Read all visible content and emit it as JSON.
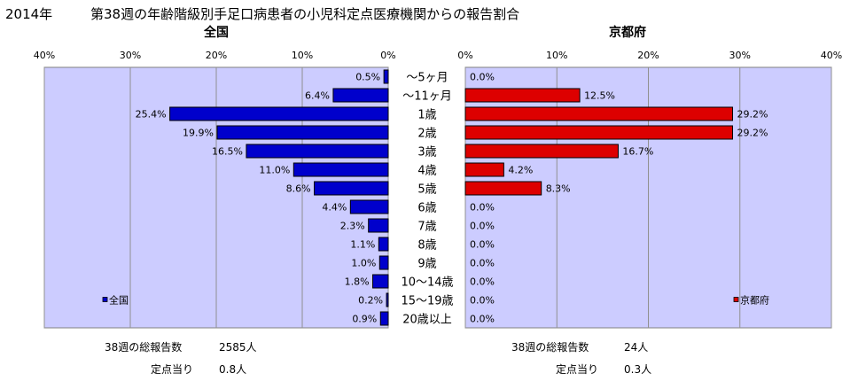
{
  "header": {
    "year": "2014年",
    "title": "第38週の年齢階級別手足口病患者の小児科定点医療機関からの報告割合"
  },
  "chart_data": [
    {
      "type": "bar",
      "orientation": "horizontal",
      "title": "全国",
      "legend": "全国",
      "legend_position": "bottom-left",
      "xlim": [
        0,
        40
      ],
      "x_direction": "reversed",
      "ticks": [
        "0%",
        "10%",
        "20%",
        "30%",
        "40%"
      ],
      "grid": true,
      "color": "#0000cc",
      "categories": [
        "～5ヶ月",
        "～11ヶ月",
        "1歳",
        "2歳",
        "3歳",
        "4歳",
        "5歳",
        "6歳",
        "7歳",
        "8歳",
        "9歳",
        "10～14歳",
        "15～19歳",
        "20歳以上"
      ],
      "values": [
        0.5,
        6.4,
        25.4,
        19.9,
        16.5,
        11.0,
        8.6,
        4.4,
        2.3,
        1.1,
        1.0,
        1.8,
        0.2,
        0.9
      ],
      "value_labels": [
        "0.5%",
        "6.4%",
        "25.4%",
        "19.9%",
        "16.5%",
        "11.0%",
        "8.6%",
        "4.4%",
        "2.3%",
        "1.1%",
        "1.0%",
        "1.8%",
        "0.2%",
        "0.9%"
      ]
    },
    {
      "type": "bar",
      "orientation": "horizontal",
      "title": "京都府",
      "legend": "京都府",
      "legend_position": "bottom-right",
      "xlim": [
        0,
        40
      ],
      "ticks": [
        "0%",
        "10%",
        "20%",
        "30%",
        "40%"
      ],
      "grid": true,
      "color": "#dd0000",
      "categories": [
        "～5ヶ月",
        "～11ヶ月",
        "1歳",
        "2歳",
        "3歳",
        "4歳",
        "5歳",
        "6歳",
        "7歳",
        "8歳",
        "9歳",
        "10～14歳",
        "15～19歳",
        "20歳以上"
      ],
      "values": [
        0.0,
        12.5,
        29.2,
        29.2,
        16.7,
        4.2,
        8.3,
        0.0,
        0.0,
        0.0,
        0.0,
        0.0,
        0.0,
        0.0
      ],
      "value_labels": [
        "0.0%",
        "12.5%",
        "29.2%",
        "29.2%",
        "16.7%",
        "4.2%",
        "8.3%",
        "0.0%",
        "0.0%",
        "0.0%",
        "0.0%",
        "0.0%",
        "0.0%",
        "0.0%"
      ]
    }
  ],
  "footer": {
    "national": {
      "total_label": "38週の総報告数",
      "total_value": "2585人",
      "per_label": "定点当り",
      "per_value": "0.8人"
    },
    "kyoto": {
      "total_label": "38週の総報告数",
      "total_value": "24人",
      "per_label": "定点当り",
      "per_value": "0.3人"
    }
  }
}
